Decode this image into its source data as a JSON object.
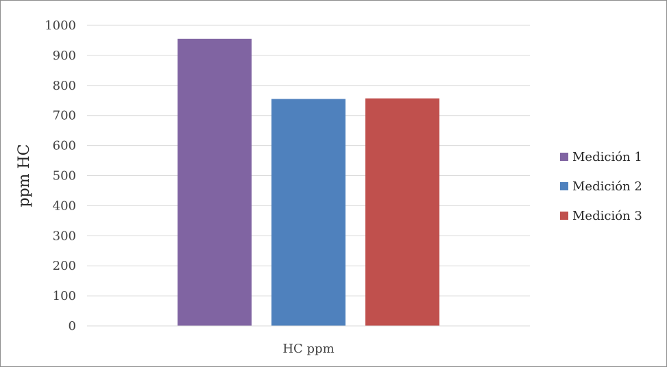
{
  "chart_data": {
    "type": "bar",
    "categories": [
      "HC ppm"
    ],
    "series": [
      {
        "name": "Medición 1",
        "values": [
          955
        ],
        "color": "#8064a2"
      },
      {
        "name": "Medición 2",
        "values": [
          755
        ],
        "color": "#4f81bd"
      },
      {
        "name": "Medición 3",
        "values": [
          757
        ],
        "color": "#c0504d"
      }
    ],
    "title": "",
    "xlabel": "",
    "ylabel": "ppm HC",
    "ylim": [
      0,
      1000
    ],
    "yticks": [
      0,
      100,
      200,
      300,
      400,
      500,
      600,
      700,
      800,
      900,
      1000
    ],
    "grid": true,
    "legend_position": "right"
  }
}
